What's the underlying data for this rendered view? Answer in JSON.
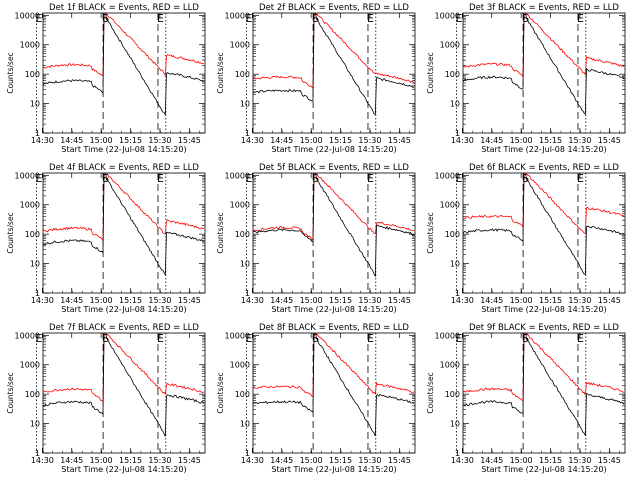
{
  "chart_data": {
    "type": "line",
    "time_ticks": [
      "14:30",
      "14:45",
      "15:00",
      "15:15",
      "15:30",
      "15:45"
    ],
    "y_ticks": [
      1,
      10,
      100,
      1000,
      10000
    ],
    "y_tick_labels": [
      "1",
      "10",
      "100",
      "1000",
      "10000"
    ],
    "ylabel": "Counts/sec",
    "xlabel": "Start Time (22-Jul-08 14:15:20)",
    "marker_labels": [
      "E",
      "S",
      "E"
    ],
    "colors": {
      "events": "#000000",
      "lld": "#ff0000"
    },
    "panels": [
      {
        "title": "Det 1f BLACK = Events, RED = LLD",
        "base_black": 60,
        "base_red": 210,
        "post_black": 70,
        "post_red": 280,
        "start_black": 40,
        "start_red": 150
      },
      {
        "title": "Det 2f BLACK = Events, RED = LLD",
        "base_black": 28,
        "base_red": 80,
        "post_black": 45,
        "post_red": 65,
        "start_black": 22,
        "start_red": 65
      },
      {
        "title": "Det 3f BLACK = Events, RED = LLD",
        "base_black": 80,
        "base_red": 220,
        "post_black": 90,
        "post_red": 220,
        "start_black": 50,
        "start_red": 150
      },
      {
        "title": "Det 4f BLACK = Events, RED = LLD",
        "base_black": 60,
        "base_red": 160,
        "post_black": 70,
        "post_red": 180,
        "start_black": 40,
        "start_red": 110
      },
      {
        "title": "Det 5f BLACK = Events, RED = LLD",
        "base_black": 140,
        "base_red": 170,
        "post_black": 120,
        "post_red": 160,
        "start_black": 100,
        "start_red": 110
      },
      {
        "title": "Det 6f BLACK = Events, RED = LLD",
        "base_black": 140,
        "base_red": 400,
        "post_black": 120,
        "post_red": 500,
        "start_black": 100,
        "start_red": 350
      },
      {
        "title": "Det 7f BLACK = Events, RED = LLD",
        "base_black": 55,
        "base_red": 150,
        "post_black": 60,
        "post_red": 140,
        "start_black": 35,
        "start_red": 100
      },
      {
        "title": "Det 8f BLACK = Events, RED = LLD",
        "base_black": 55,
        "base_red": 180,
        "post_black": 60,
        "post_red": 140,
        "start_black": 45,
        "start_red": 160
      },
      {
        "title": "Det 9f BLACK = Events, RED = LLD",
        "base_black": 55,
        "base_red": 150,
        "post_black": 60,
        "post_red": 150,
        "start_black": 35,
        "start_red": 100
      }
    ]
  }
}
